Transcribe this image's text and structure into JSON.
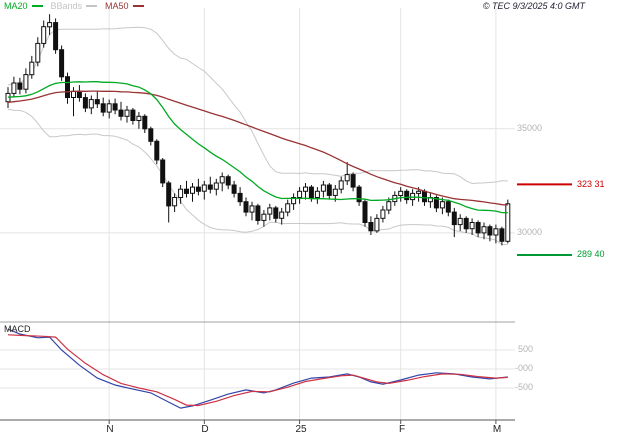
{
  "header": {
    "legend": [
      {
        "label": "MA20",
        "color": "#00aa22"
      },
      {
        "label": "BBands",
        "color": "#c4c4c4"
      },
      {
        "label": "MA50",
        "color": "#993333"
      }
    ],
    "copyright": "© TEC 9/3/2025 4:0 GMT"
  },
  "price_axis": {
    "labels": [
      {
        "text": "35000",
        "value": 35000
      },
      {
        "text": "30000",
        "value": 30000
      }
    ]
  },
  "levels": [
    {
      "label": "323 31",
      "value": 32331,
      "color": "#cc0000"
    },
    {
      "label": "289 40",
      "value": 28940,
      "color": "#009933"
    }
  ],
  "macd_panel": {
    "title": "MACD",
    "axis_labels": [
      {
        "text": "500",
        "value": 500
      },
      {
        "text": "-000",
        "value": 0
      },
      {
        "text": "-500",
        "value": -500
      }
    ]
  },
  "x_axis": {
    "labels": [
      "N",
      "D",
      "25",
      "F",
      "M"
    ],
    "tick_indices": [
      17,
      33,
      49,
      66,
      82
    ]
  },
  "chart_data": [
    {
      "type": "candlestick",
      "title": "Daily price with MA20, MA50 and Bollinger Bands",
      "ylim": [
        26300,
        40800
      ],
      "y_gridlines": [
        35000,
        30000
      ],
      "x_tick_labels": [
        "N",
        "D",
        "25",
        "F",
        "M"
      ],
      "x_tick_indices": [
        17,
        33,
        49,
        66,
        82
      ],
      "overlays": {
        "ma20_color": "#00aa22",
        "ma50_color": "#993333",
        "bbands_color": "#c8c8c8"
      },
      "levels": [
        32331,
        28940
      ],
      "prehistory_closes": [
        35200,
        35400,
        35300,
        35500,
        35600,
        35400,
        35700,
        35800,
        35600,
        35900,
        36000,
        35800,
        36100,
        36200,
        36000,
        36300,
        36200,
        36100,
        36300,
        36400,
        36200,
        36500,
        36400,
        36300,
        36500,
        36600,
        36400,
        36700,
        36600,
        36500,
        36700,
        36800,
        36600,
        36900,
        36800,
        36700,
        36900,
        37000,
        36800,
        36600,
        36500,
        36400,
        36300,
        36200,
        36100,
        36200,
        36300,
        36200,
        36100,
        36200
      ],
      "candles": [
        [
          36300,
          37000,
          36000,
          36700
        ],
        [
          36700,
          37500,
          36500,
          37200
        ],
        [
          37200,
          37450,
          36650,
          36900
        ],
        [
          36900,
          37900,
          36700,
          37600
        ],
        [
          37600,
          38500,
          37400,
          38200
        ],
        [
          38200,
          39400,
          38000,
          39100
        ],
        [
          39100,
          40200,
          38900,
          39900
        ],
        [
          39900,
          40500,
          39500,
          40100
        ],
        [
          40100,
          40300,
          38600,
          38800
        ],
        [
          38800,
          39000,
          37300,
          37500
        ],
        [
          37500,
          37700,
          36200,
          36500
        ],
        [
          36500,
          37000,
          35600,
          36800
        ],
        [
          36800,
          37100,
          36300,
          36500
        ],
        [
          36500,
          36700,
          35800,
          36000
        ],
        [
          36000,
          36600,
          35700,
          36400
        ],
        [
          36400,
          36800,
          36000,
          36200
        ],
        [
          36200,
          36500,
          35600,
          35800
        ],
        [
          35800,
          36400,
          35500,
          36200
        ],
        [
          36200,
          36450,
          35700,
          35900
        ],
        [
          35900,
          36300,
          35400,
          35600
        ],
        [
          35600,
          36100,
          35300,
          35900
        ],
        [
          35900,
          36000,
          35200,
          35400
        ],
        [
          35400,
          35800,
          35000,
          35600
        ],
        [
          35600,
          35700,
          34800,
          35000
        ],
        [
          35000,
          35100,
          34200,
          34400
        ],
        [
          34400,
          34500,
          33300,
          33500
        ],
        [
          33500,
          33600,
          32200,
          32400
        ],
        [
          32400,
          32500,
          30500,
          31300
        ],
        [
          31300,
          31900,
          31000,
          31700
        ],
        [
          31700,
          32300,
          31400,
          32100
        ],
        [
          32100,
          32500,
          31700,
          31900
        ],
        [
          31900,
          32400,
          31500,
          32200
        ],
        [
          32200,
          32600,
          31800,
          32000
        ],
        [
          32000,
          32500,
          31600,
          32300
        ],
        [
          32300,
          32700,
          31900,
          32100
        ],
        [
          32100,
          32600,
          31800,
          32400
        ],
        [
          32400,
          32900,
          32000,
          32700
        ],
        [
          32700,
          32800,
          32100,
          32300
        ],
        [
          32300,
          32500,
          31700,
          31900
        ],
        [
          31900,
          32200,
          31300,
          31500
        ],
        [
          31500,
          31700,
          30800,
          31000
        ],
        [
          31000,
          31500,
          30600,
          31300
        ],
        [
          31300,
          31400,
          30400,
          30600
        ],
        [
          30600,
          31100,
          30300,
          30900
        ],
        [
          30900,
          31400,
          30600,
          31200
        ],
        [
          31200,
          31300,
          30500,
          30700
        ],
        [
          30700,
          31200,
          30400,
          31000
        ],
        [
          31000,
          31600,
          30800,
          31400
        ],
        [
          31400,
          31900,
          31100,
          31700
        ],
        [
          31700,
          32200,
          31400,
          32000
        ],
        [
          32000,
          32400,
          31600,
          32200
        ],
        [
          32200,
          32300,
          31500,
          31700
        ],
        [
          31700,
          32200,
          31400,
          32000
        ],
        [
          32000,
          32500,
          31700,
          32300
        ],
        [
          32300,
          32400,
          31600,
          31800
        ],
        [
          31800,
          32300,
          31500,
          32100
        ],
        [
          32100,
          32700,
          31900,
          32500
        ],
        [
          32500,
          33400,
          32300,
          32800
        ],
        [
          32800,
          32900,
          32000,
          32200
        ],
        [
          32200,
          32300,
          31300,
          31500
        ],
        [
          31500,
          31600,
          30300,
          30500
        ],
        [
          30500,
          30800,
          29900,
          30100
        ],
        [
          30100,
          30900,
          30000,
          30700
        ],
        [
          30700,
          31300,
          30500,
          31100
        ],
        [
          31100,
          31700,
          30900,
          31500
        ],
        [
          31500,
          32000,
          31300,
          31800
        ],
        [
          31800,
          32200,
          31500,
          32000
        ],
        [
          32000,
          32100,
          31400,
          31600
        ],
        [
          31600,
          32100,
          31300,
          31900
        ],
        [
          31900,
          32200,
          31500,
          32000
        ],
        [
          32000,
          32100,
          31300,
          31500
        ],
        [
          31500,
          31900,
          31200,
          31700
        ],
        [
          31700,
          31800,
          31000,
          31200
        ],
        [
          31200,
          31700,
          30900,
          31500
        ],
        [
          31500,
          31600,
          30800,
          31000
        ],
        [
          31000,
          31200,
          29800,
          30400
        ],
        [
          30400,
          30900,
          30100,
          30700
        ],
        [
          30700,
          30800,
          30000,
          30200
        ],
        [
          30200,
          30700,
          29900,
          30500
        ],
        [
          30500,
          30600,
          29800,
          30000
        ],
        [
          30000,
          30500,
          29700,
          30300
        ],
        [
          30300,
          30400,
          29600,
          29900
        ],
        [
          29900,
          30400,
          29500,
          30200
        ],
        [
          30200,
          30300,
          29400,
          29600
        ],
        [
          29600,
          31600,
          29500,
          31400
        ]
      ]
    },
    {
      "type": "line",
      "title": "MACD",
      "ylim": [
        -1290,
        1240
      ],
      "y_gridlines": [
        500,
        0,
        -500
      ],
      "series": [
        {
          "name": "macd",
          "color": "#3344aa",
          "points": [
            [
              0,
              1050
            ],
            [
              2,
              920
            ],
            [
              5,
              820
            ],
            [
              7,
              840
            ],
            [
              9,
              500
            ],
            [
              12,
              100
            ],
            [
              15,
              -240
            ],
            [
              18,
              -420
            ],
            [
              21,
              -530
            ],
            [
              24,
              -630
            ],
            [
              27,
              -870
            ],
            [
              29,
              -1030
            ],
            [
              31,
              -970
            ],
            [
              34,
              -820
            ],
            [
              37,
              -660
            ],
            [
              40,
              -550
            ],
            [
              43,
              -630
            ],
            [
              45,
              -550
            ],
            [
              48,
              -370
            ],
            [
              51,
              -240
            ],
            [
              54,
              -210
            ],
            [
              57,
              -130
            ],
            [
              59,
              -210
            ],
            [
              61,
              -340
            ],
            [
              63,
              -400
            ],
            [
              66,
              -290
            ],
            [
              69,
              -160
            ],
            [
              72,
              -100
            ],
            [
              75,
              -130
            ],
            [
              78,
              -210
            ],
            [
              81,
              -260
            ],
            [
              84,
              -210
            ]
          ]
        },
        {
          "name": "signal",
          "color": "#cc3344",
          "points": [
            [
              0,
              900
            ],
            [
              3,
              880
            ],
            [
              6,
              860
            ],
            [
              8,
              840
            ],
            [
              10,
              520
            ],
            [
              13,
              150
            ],
            [
              16,
              -150
            ],
            [
              19,
              -380
            ],
            [
              22,
              -500
            ],
            [
              25,
              -600
            ],
            [
              28,
              -800
            ],
            [
              30,
              -950
            ],
            [
              32,
              -960
            ],
            [
              35,
              -850
            ],
            [
              38,
              -700
            ],
            [
              41,
              -590
            ],
            [
              44,
              -600
            ],
            [
              47,
              -480
            ],
            [
              50,
              -330
            ],
            [
              53,
              -250
            ],
            [
              56,
              -180
            ],
            [
              58,
              -160
            ],
            [
              60,
              -250
            ],
            [
              62,
              -340
            ],
            [
              64,
              -380
            ],
            [
              67,
              -300
            ],
            [
              70,
              -200
            ],
            [
              73,
              -130
            ],
            [
              76,
              -140
            ],
            [
              79,
              -200
            ],
            [
              82,
              -240
            ],
            [
              84,
              -220
            ]
          ]
        }
      ]
    }
  ]
}
